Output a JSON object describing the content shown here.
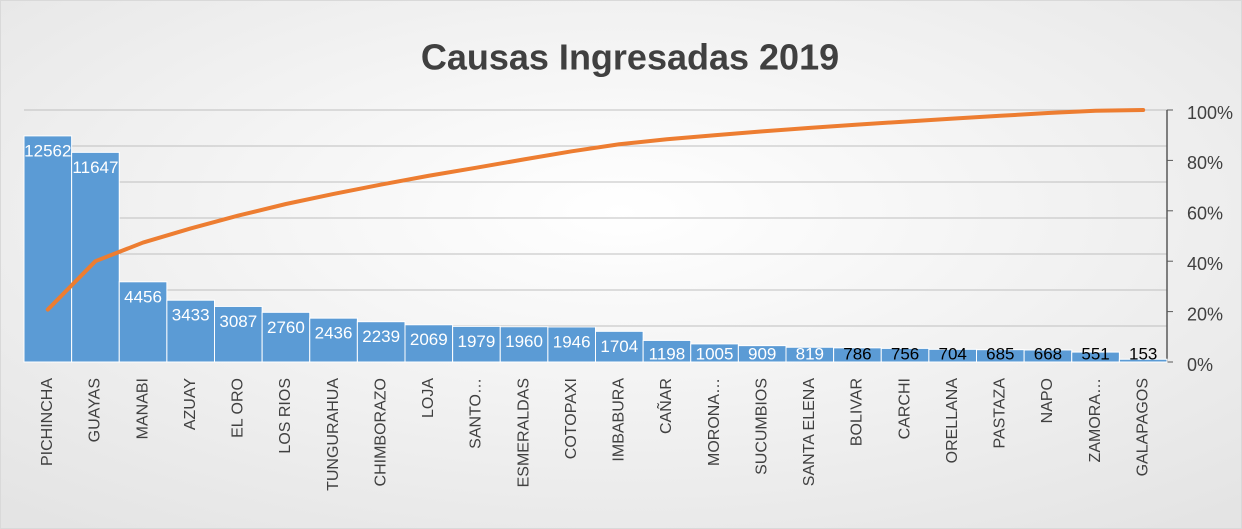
{
  "chart_data": {
    "type": "pareto",
    "title": "Causas Ingresadas 2019",
    "categories": [
      "PICHINCHA",
      "GUAYAS",
      "MANABI",
      "AZUAY",
      "EL ORO",
      "LOS RIOS",
      "TUNGURAHUA",
      "CHIMBORAZO",
      "LOJA",
      "SANTO…",
      "ESMERALDAS",
      "COTOPAXI",
      "IMBABURA",
      "CAÑAR",
      "MORONA…",
      "SUCUMBIOS",
      "SANTA ELENA",
      "BOLIVAR",
      "CARCHI",
      "ORELLANA",
      "PASTAZA",
      "NAPO",
      "ZAMORA…",
      "GALAPAGOS"
    ],
    "values": [
      12562,
      11647,
      4456,
      3433,
      3087,
      2760,
      2436,
      2239,
      2069,
      1979,
      1960,
      1946,
      1704,
      1198,
      1005,
      909,
      819,
      786,
      756,
      704,
      685,
      668,
      551,
      153
    ],
    "color": "#5b9bd5",
    "value_label_colors": [
      "#ffffff",
      "#ffffff",
      "#ffffff",
      "#ffffff",
      "#ffffff",
      "#ffffff",
      "#ffffff",
      "#ffffff",
      "#ffffff",
      "#ffffff",
      "#ffffff",
      "#ffffff",
      "#ffffff",
      "#ffffff",
      "#ffffff",
      "#ffffff",
      "#ffffff",
      "#000000",
      "#000000",
      "#000000",
      "#000000",
      "#000000",
      "#000000",
      "#000000"
    ],
    "line_values": [
      20.8,
      40.0,
      47.4,
      53.0,
      58.1,
      62.7,
      66.7,
      70.4,
      73.9,
      77.1,
      80.4,
      83.6,
      86.4,
      88.4,
      90.0,
      91.5,
      92.9,
      94.2,
      95.4,
      96.6,
      97.7,
      98.8,
      99.7,
      100.0
    ],
    "line_color": "#ed7d31",
    "ylim": [
      0,
      14000
    ],
    "yticks": [
      0,
      2000,
      4000,
      6000,
      8000,
      10000,
      12000,
      14000
    ],
    "y2lim": [
      0,
      100
    ],
    "y2ticks": [
      {
        "value": 0,
        "label": "0%"
      },
      {
        "value": 20,
        "label": "20%"
      },
      {
        "value": 40,
        "label": "40%"
      },
      {
        "value": 60,
        "label": "60%"
      },
      {
        "value": 80,
        "label": "80%"
      },
      {
        "value": 100,
        "label": "100%"
      }
    ],
    "grid": true
  }
}
